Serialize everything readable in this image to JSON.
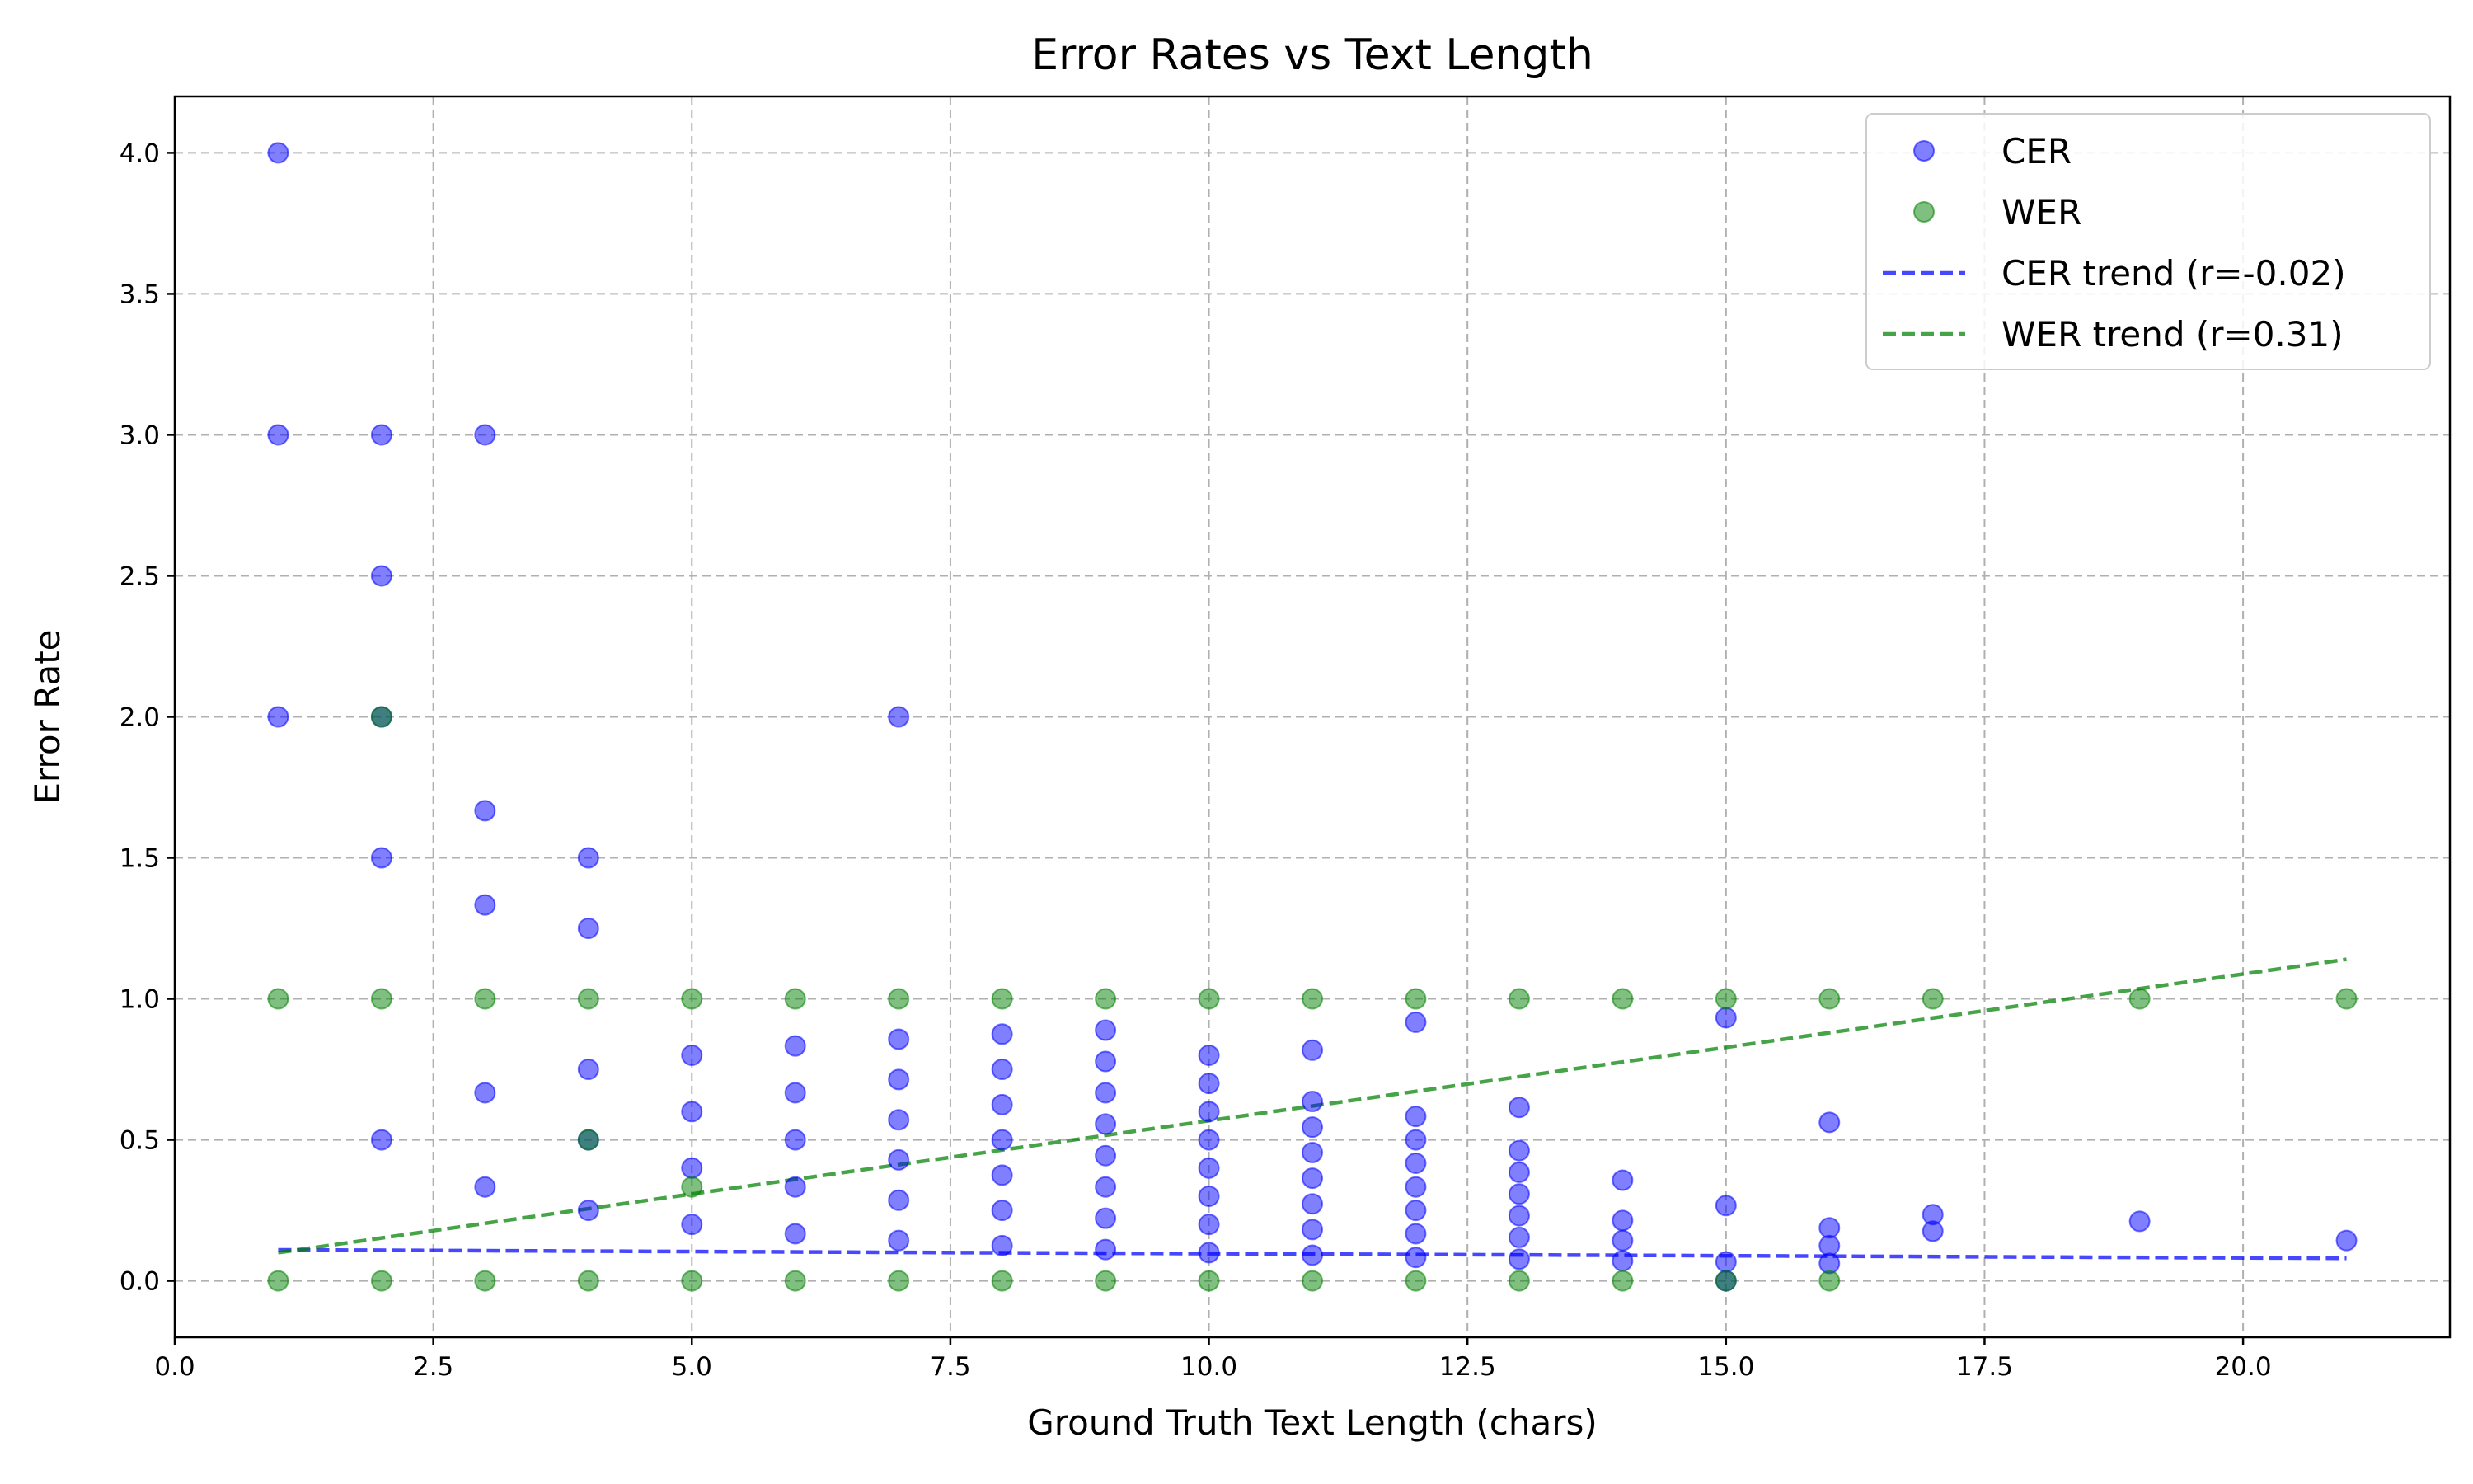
{
  "chart_data": {
    "type": "scatter",
    "title": "Error Rates vs Text Length",
    "xlabel": "Ground Truth Text Length (chars)",
    "ylabel": "Error Rate",
    "xlim": [
      0,
      22
    ],
    "ylim": [
      -0.2,
      4.2
    ],
    "xticks": [
      0,
      2.5,
      5,
      7.5,
      10,
      12.5,
      15,
      17.5,
      20
    ],
    "xtick_labels": [
      "0.0",
      "2.5",
      "5.0",
      "7.5",
      "10.0",
      "12.5",
      "15.0",
      "17.5",
      "20.0"
    ],
    "yticks": [
      0,
      0.5,
      1,
      1.5,
      2,
      2.5,
      3,
      3.5,
      4
    ],
    "ytick_labels": [
      "0.0",
      "0.5",
      "1.0",
      "1.5",
      "2.0",
      "2.5",
      "3.0",
      "3.5",
      "4.0"
    ],
    "grid": true,
    "legend_position": "top-right",
    "series": [
      {
        "name": "CER",
        "kind": "scatter",
        "color": "#0000ff",
        "points": [
          [
            1,
            4.0
          ],
          [
            1,
            3.0
          ],
          [
            1,
            2.0
          ],
          [
            2,
            3.0
          ],
          [
            2,
            2.5
          ],
          [
            2,
            2.0
          ],
          [
            2,
            1.5
          ],
          [
            2,
            0.5
          ],
          [
            3,
            3.0
          ],
          [
            3,
            1.667
          ],
          [
            3,
            1.333
          ],
          [
            3,
            0.667
          ],
          [
            3,
            0.333
          ],
          [
            4,
            1.5
          ],
          [
            4,
            1.25
          ],
          [
            4,
            0.75
          ],
          [
            4,
            0.5
          ],
          [
            4,
            0.25
          ],
          [
            5,
            0.8
          ],
          [
            5,
            0.6
          ],
          [
            5,
            0.4
          ],
          [
            5,
            0.2
          ],
          [
            6,
            0.833
          ],
          [
            6,
            0.667
          ],
          [
            6,
            0.5
          ],
          [
            6,
            0.333
          ],
          [
            6,
            0.167
          ],
          [
            7,
            2.0
          ],
          [
            7,
            0.857
          ],
          [
            7,
            0.714
          ],
          [
            7,
            0.571
          ],
          [
            7,
            0.429
          ],
          [
            7,
            0.286
          ],
          [
            7,
            0.143
          ],
          [
            8,
            0.875
          ],
          [
            8,
            0.75
          ],
          [
            8,
            0.625
          ],
          [
            8,
            0.5
          ],
          [
            8,
            0.375
          ],
          [
            8,
            0.25
          ],
          [
            8,
            0.125
          ],
          [
            9,
            0.889
          ],
          [
            9,
            0.778
          ],
          [
            9,
            0.667
          ],
          [
            9,
            0.556
          ],
          [
            9,
            0.444
          ],
          [
            9,
            0.333
          ],
          [
            9,
            0.222
          ],
          [
            9,
            0.111
          ],
          [
            10,
            0.8
          ],
          [
            10,
            0.7
          ],
          [
            10,
            0.6
          ],
          [
            10,
            0.5
          ],
          [
            10,
            0.4
          ],
          [
            10,
            0.3
          ],
          [
            10,
            0.2
          ],
          [
            10,
            0.1
          ],
          [
            11,
            0.818
          ],
          [
            11,
            0.636
          ],
          [
            11,
            0.545
          ],
          [
            11,
            0.455
          ],
          [
            11,
            0.364
          ],
          [
            11,
            0.273
          ],
          [
            11,
            0.182
          ],
          [
            11,
            0.091
          ],
          [
            12,
            0.917
          ],
          [
            12,
            0.583
          ],
          [
            12,
            0.5
          ],
          [
            12,
            0.417
          ],
          [
            12,
            0.333
          ],
          [
            12,
            0.25
          ],
          [
            12,
            0.167
          ],
          [
            12,
            0.083
          ],
          [
            13,
            0.615
          ],
          [
            13,
            0.462
          ],
          [
            13,
            0.385
          ],
          [
            13,
            0.308
          ],
          [
            13,
            0.231
          ],
          [
            13,
            0.154
          ],
          [
            13,
            0.077
          ],
          [
            14,
            0.357
          ],
          [
            14,
            0.214
          ],
          [
            14,
            0.143
          ],
          [
            14,
            0.071
          ],
          [
            15,
            0.933
          ],
          [
            15,
            0.267
          ],
          [
            15,
            0.067
          ],
          [
            15,
            0.0
          ],
          [
            16,
            0.562
          ],
          [
            16,
            0.188
          ],
          [
            16,
            0.125
          ],
          [
            16,
            0.062
          ],
          [
            17,
            0.235
          ],
          [
            17,
            0.176
          ],
          [
            19,
            0.211
          ],
          [
            21,
            0.143
          ]
        ]
      },
      {
        "name": "WER",
        "kind": "scatter",
        "color": "#008000",
        "points": [
          [
            1,
            1.0
          ],
          [
            1,
            0.0
          ],
          [
            2,
            2.0
          ],
          [
            2,
            1.0
          ],
          [
            2,
            0.0
          ],
          [
            3,
            1.0
          ],
          [
            3,
            0.0
          ],
          [
            4,
            1.0
          ],
          [
            4,
            0.5
          ],
          [
            4,
            0.0
          ],
          [
            5,
            1.0
          ],
          [
            5,
            0.333
          ],
          [
            5,
            0.0
          ],
          [
            6,
            1.0
          ],
          [
            6,
            0.0
          ],
          [
            7,
            1.0
          ],
          [
            7,
            0.0
          ],
          [
            8,
            1.0
          ],
          [
            8,
            0.0
          ],
          [
            9,
            1.0
          ],
          [
            9,
            0.0
          ],
          [
            10,
            1.0
          ],
          [
            10,
            0.0
          ],
          [
            11,
            1.0
          ],
          [
            11,
            0.0
          ],
          [
            12,
            1.0
          ],
          [
            12,
            0.0
          ],
          [
            13,
            1.0
          ],
          [
            13,
            0.0
          ],
          [
            14,
            1.0
          ],
          [
            14,
            0.0
          ],
          [
            15,
            1.0
          ],
          [
            15,
            0.0
          ],
          [
            16,
            1.0
          ],
          [
            16,
            0.0
          ],
          [
            17,
            1.0
          ],
          [
            19,
            1.0
          ],
          [
            21,
            1.0
          ]
        ]
      },
      {
        "name": "CER trend (r=-0.02)",
        "kind": "trend",
        "color": "#0000ff",
        "x": [
          1,
          21
        ],
        "y": [
          0.11,
          0.08
        ]
      },
      {
        "name": "WER trend (r=0.31)",
        "kind": "trend",
        "color": "#008000",
        "x": [
          1,
          21
        ],
        "y": [
          0.1,
          1.14
        ]
      }
    ]
  }
}
